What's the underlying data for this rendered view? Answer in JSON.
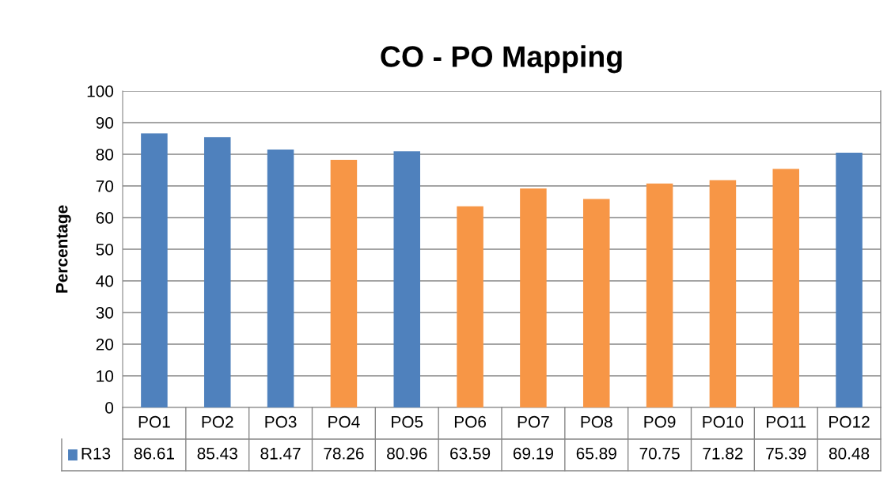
{
  "chart_data": {
    "type": "bar",
    "title": "CO - PO Mapping",
    "ylabel": "Percentage",
    "categories": [
      "PO1",
      "PO2",
      "PO3",
      "PO4",
      "PO5",
      "PO6",
      "PO7",
      "PO8",
      "PO9",
      "PO10",
      "PO11",
      "PO12"
    ],
    "series": [
      {
        "name": "R13",
        "color": "#4f81bd",
        "colors": [
          "#4f81bd",
          "#4f81bd",
          "#4f81bd",
          "#f79646",
          "#4f81bd",
          "#f79646",
          "#f79646",
          "#f79646",
          "#f79646",
          "#f79646",
          "#f79646",
          "#4f81bd"
        ],
        "values": [
          86.61,
          85.43,
          81.47,
          78.26,
          80.96,
          63.59,
          69.19,
          65.89,
          70.75,
          71.82,
          75.39,
          80.48
        ]
      }
    ],
    "ylim": [
      0,
      100
    ],
    "yticks": [
      0,
      10,
      20,
      30,
      40,
      50,
      60,
      70,
      80,
      90,
      100
    ],
    "grid": "y",
    "data_labels": true,
    "legend": "bottom"
  }
}
